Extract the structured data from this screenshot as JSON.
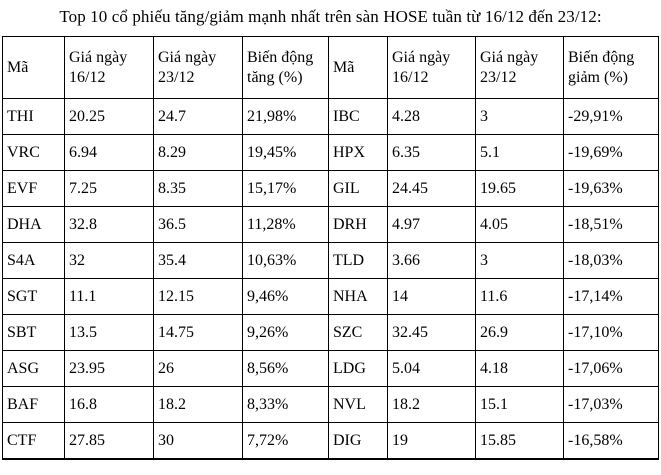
{
  "title": "Top 10 cổ phiếu tăng/giảm mạnh nhất trên sàn HOSE tuần từ 16/12 đến 23/12:",
  "table": {
    "headers": [
      "Mã",
      "Giá ngày 16/12",
      "Giá ngày 23/12",
      "Biến động tăng (%)",
      "Mã",
      "Giá ngày 16/12",
      "Giá ngày 23/12",
      "Biến động giảm (%)"
    ],
    "rows": [
      [
        "THI",
        "20.25",
        "24.7",
        "21,98%",
        "IBC",
        "4.28",
        "3",
        "-29,91%"
      ],
      [
        "VRC",
        "6.94",
        "8.29",
        "19,45%",
        "HPX",
        "6.35",
        "5.1",
        "-19,69%"
      ],
      [
        "EVF",
        "7.25",
        "8.35",
        "15,17%",
        "GIL",
        "24.45",
        "19.65",
        "-19,63%"
      ],
      [
        "DHA",
        "32.8",
        "36.5",
        "11,28%",
        "DRH",
        "4.97",
        "4.05",
        "-18,51%"
      ],
      [
        "S4A",
        "32",
        "35.4",
        "10,63%",
        "TLD",
        "3.66",
        "3",
        "-18,03%"
      ],
      [
        "SGT",
        "11.1",
        "12.15",
        "9,46%",
        "NHA",
        "14",
        "11.6",
        "-17,14%"
      ],
      [
        "SBT",
        "13.5",
        "14.75",
        "9,26%",
        "SZC",
        "32.45",
        "26.9",
        "-17,10%"
      ],
      [
        "ASG",
        "23.95",
        "26",
        "8,56%",
        "LDG",
        "5.04",
        "4.18",
        "-17,06%"
      ],
      [
        "BAF",
        "16.8",
        "18.2",
        "8,33%",
        "NVL",
        "18.2",
        "15.1",
        "-17,03%"
      ],
      [
        "CTF",
        "27.85",
        "30",
        "7,72%",
        "DIG",
        "19",
        "15.85",
        "-16,58%"
      ]
    ]
  }
}
